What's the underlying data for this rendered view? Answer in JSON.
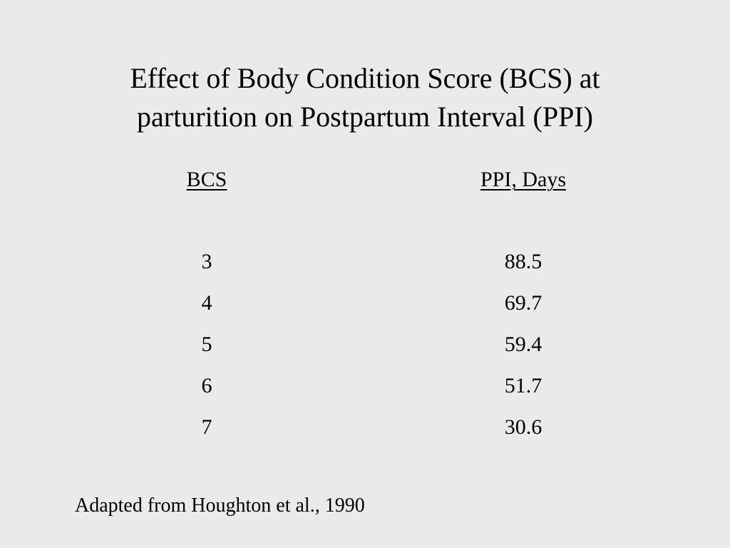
{
  "slide": {
    "title_line1": "Effect of Body Condition Score (BCS) at",
    "title_line2": "parturition on Postpartum Interval (PPI)",
    "table": {
      "headers": [
        "BCS",
        "PPI, Days"
      ],
      "rows": [
        [
          "3",
          "88.5"
        ],
        [
          "4",
          "69.7"
        ],
        [
          "5",
          "59.4"
        ],
        [
          "6",
          "51.7"
        ],
        [
          "7",
          "30.6"
        ]
      ]
    },
    "source": "Adapted from Houghton et al., 1990"
  }
}
